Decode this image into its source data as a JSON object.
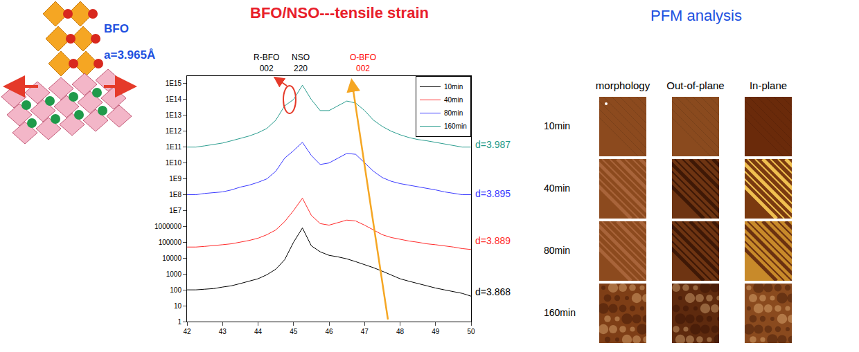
{
  "header": {
    "title": "BFO/NSO---tensile strain"
  },
  "structure": {
    "label": "BFO",
    "lattice": "a=3.965Å"
  },
  "chart_data": {
    "type": "line",
    "log": "y",
    "grid": false,
    "legend": "upper right",
    "x": [
      42,
      42.25,
      42.5,
      42.75,
      43,
      43.25,
      43.5,
      43.75,
      44,
      44.25,
      44.5,
      44.75,
      45,
      45.25,
      45.5,
      45.75,
      46,
      46.25,
      46.5,
      46.75,
      47,
      47.25,
      47.5,
      47.75,
      48,
      48.25,
      48.5,
      48.75,
      49,
      49.25,
      49.5,
      49.75,
      50
    ],
    "series": [
      {
        "name": "10min",
        "color": "#000000",
        "values": [
          100,
          100,
          110,
          120,
          150,
          180,
          250,
          350,
          500,
          900,
          2000,
          8000,
          100000,
          800000,
          60000,
          25000,
          15000,
          12000,
          9000,
          6000,
          4000,
          2500,
          1500,
          900,
          500,
          350,
          250,
          180,
          130,
          100,
          80,
          60,
          40
        ]
      },
      {
        "name": "40min",
        "color": "#ff2a2a",
        "values": [
          50000,
          50000,
          55000,
          60000,
          70000,
          80000,
          100000,
          130000,
          180000,
          300000,
          600000,
          2000000,
          10000000,
          60000000,
          5000000,
          1500000,
          1200000,
          1800000,
          2500000,
          2200000,
          1200000,
          600000,
          300000,
          200000,
          150000,
          120000,
          100000,
          80000,
          70000,
          60000,
          50000,
          40000,
          35000
        ]
      },
      {
        "name": "80min",
        "color": "#3a3aff",
        "values": [
          100000000.0,
          100000000.0,
          120000000.0,
          130000000.0,
          150000000.0,
          200000000.0,
          300000000.0,
          400000000.0,
          600000000.0,
          1000000000.0,
          3000000000.0,
          20000000000.0,
          60000000000.0,
          200000000000.0,
          30000000000.0,
          8000000000.0,
          10000000000.0,
          20000000000.0,
          40000000000.0,
          35000000000.0,
          10000000000.0,
          3000000000.0,
          1200000000.0,
          700000000.0,
          500000000.0,
          400000000.0,
          300000000.0,
          250000000.0,
          200000000.0,
          150000000.0,
          120000000.0,
          100000000.0,
          100000000.0
        ]
      },
      {
        "name": "160min",
        "color": "#2a9d8f",
        "values": [
          100000000000.0,
          100000000000.0,
          120000000000.0,
          150000000000.0,
          180000000000.0,
          250000000000.0,
          350000000000.0,
          500000000000.0,
          800000000000.0,
          1500000000000.0,
          5000000000000.0,
          40000000000000.0,
          100000000000000.0,
          800000000000000.0,
          100000000000000.0,
          20000000000000.0,
          20000000000000.0,
          40000000000000.0,
          80000000000000.0,
          60000000000000.0,
          20000000000000.0,
          5000000000000.0,
          2000000000000.0,
          1000000000000.0,
          600000000000.0,
          400000000000.0,
          300000000000.0,
          250000000000.0,
          200000000000.0,
          150000000000.0,
          120000000000.0,
          100000000000.0,
          100000000000.0
        ]
      }
    ],
    "xlim": [
      42,
      50
    ],
    "xticks": [
      42,
      43,
      44,
      45,
      46,
      47,
      48,
      49,
      50
    ],
    "ylim": [
      1,
      3000000000000000.0
    ],
    "yticks": [
      1,
      10,
      100,
      1000,
      10000,
      100000,
      1000000,
      {
        "value": 10000000.0,
        "label": "1E7"
      },
      {
        "value": 100000000.0,
        "label": "1E8"
      },
      {
        "value": 1000000000.0,
        "label": "1E9"
      },
      {
        "value": 10000000000.0,
        "label": "1E10"
      },
      {
        "value": 100000000000.0,
        "label": "1E11"
      },
      {
        "value": 1000000000000.0,
        "label": "1E12"
      },
      {
        "value": 10000000000000.0,
        "label": "1E13"
      },
      {
        "value": 100000000000000.0,
        "label": "1E14"
      },
      {
        "value": 1000000000000000.0,
        "label": "1E15"
      }
    ],
    "annotations": [
      {
        "text": [
          "R-BFO",
          "002"
        ],
        "color": "#000000"
      },
      {
        "text": [
          "NSO",
          "220"
        ],
        "color": "#000000"
      },
      {
        "text": [
          "O-BFO",
          "002"
        ],
        "color": "#ff0000"
      },
      {
        "text": [
          "d=3.987"
        ],
        "color": "#1e9a8a"
      },
      {
        "text": [
          "d=3.895"
        ],
        "color": "#3a3aff"
      },
      {
        "text": [
          "d=3.889"
        ],
        "color": "#ff2a2a"
      },
      {
        "text": [
          "d=3.868"
        ],
        "color": "#000000"
      }
    ]
  },
  "pfm": {
    "title": "PFM analysis",
    "columns": [
      "morphology",
      "Out-of-plane",
      "In-plane"
    ],
    "rows": [
      "10min",
      "40min",
      "80min",
      "160min"
    ]
  }
}
